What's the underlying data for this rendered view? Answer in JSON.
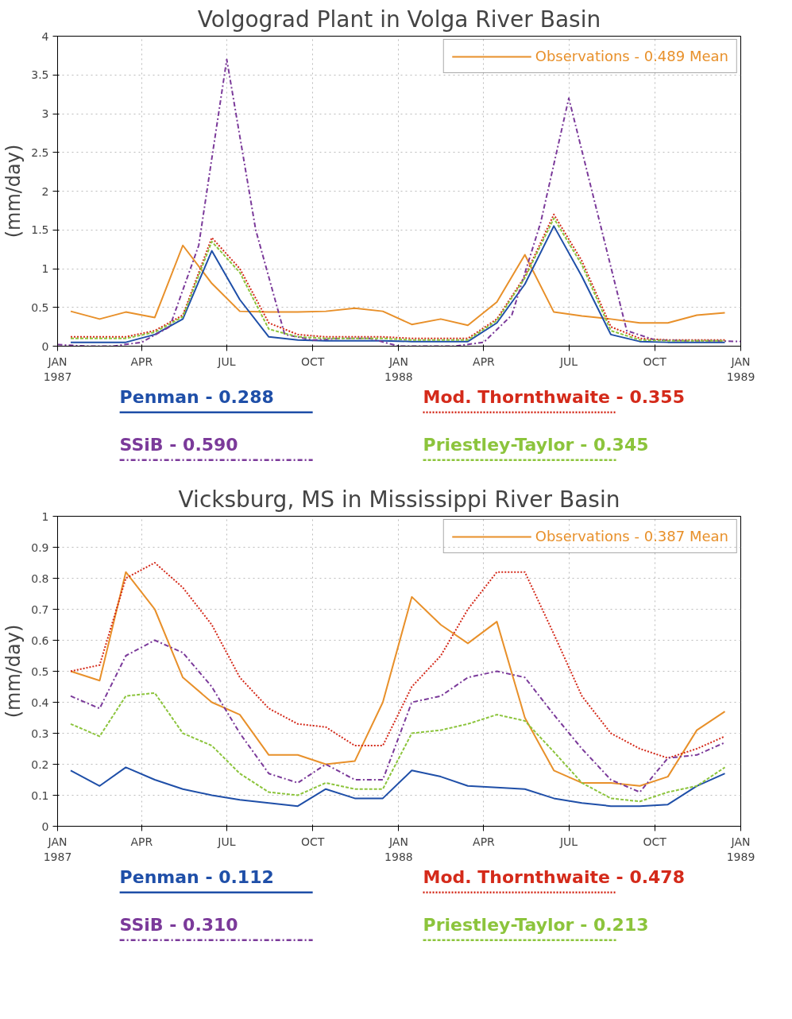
{
  "chart_data": [
    {
      "type": "line",
      "title": "Volgograd Plant in Volga River Basin",
      "ylabel": "(mm/day)",
      "x": [
        "1987-01-15",
        "1987-02-15",
        "1987-03-15",
        "1987-04-15",
        "1987-05-15",
        "1987-06-15",
        "1987-07-15",
        "1987-08-15",
        "1987-09-15",
        "1987-10-15",
        "1987-11-15",
        "1987-12-15",
        "1988-01-15",
        "1988-02-15",
        "1988-03-15",
        "1988-04-15",
        "1988-05-15",
        "1988-06-15",
        "1988-07-15",
        "1988-08-15",
        "1988-09-15",
        "1988-10-15",
        "1988-11-15",
        "1988-12-15"
      ],
      "series": [
        {
          "name": "Observations - 0.489 Mean",
          "color": "#e8902a",
          "line_style": "solid",
          "values": [
            0.45,
            0.35,
            0.44,
            0.37,
            1.3,
            0.81,
            0.45,
            0.44,
            0.44,
            0.45,
            0.49,
            0.45,
            0.28,
            0.35,
            0.27,
            0.57,
            1.18,
            0.44,
            0.39,
            0.35,
            0.3,
            0.3,
            0.4,
            0.43
          ]
        },
        {
          "name": "Penman - 0.288",
          "color": "#1f4fa8",
          "line_style": "solid",
          "values": [
            0.05,
            0.05,
            0.05,
            0.15,
            0.35,
            1.23,
            0.6,
            0.12,
            0.08,
            0.07,
            0.07,
            0.07,
            0.06,
            0.06,
            0.06,
            0.3,
            0.8,
            1.55,
            0.9,
            0.15,
            0.06,
            0.05,
            0.05,
            0.05
          ]
        },
        {
          "name": "Mod. Thornthwaite - 0.355",
          "color": "#d42a1a",
          "line_style": "dotted",
          "values": [
            0.12,
            0.12,
            0.12,
            0.2,
            0.4,
            1.4,
            1.0,
            0.3,
            0.15,
            0.12,
            0.12,
            0.12,
            0.1,
            0.1,
            0.1,
            0.35,
            0.9,
            1.7,
            1.1,
            0.25,
            0.1,
            0.08,
            0.08,
            0.08
          ]
        },
        {
          "name": "SSiB - 0.590",
          "color": "#7b3a9a",
          "line_style": "dashdot",
          "x": [
            "1987-01-01",
            "1987-02-01",
            "1987-03-01",
            "1987-04-01",
            "1987-05-01",
            "1987-06-01",
            "1987-07-01",
            "1987-08-01",
            "1987-09-01",
            "1987-10-01",
            "1987-11-01",
            "1987-12-01",
            "1988-01-01",
            "1988-02-01",
            "1988-03-01",
            "1988-04-01",
            "1988-05-01",
            "1988-06-01",
            "1988-07-01",
            "1988-08-01",
            "1988-09-01",
            "1988-10-01",
            "1988-11-01",
            "1988-12-01",
            "1989-01-01"
          ],
          "values": [
            0.02,
            0.0,
            0.0,
            0.05,
            0.25,
            1.3,
            3.7,
            1.5,
            0.15,
            0.08,
            0.1,
            0.1,
            0.0,
            0.0,
            0.0,
            0.05,
            0.4,
            1.6,
            3.2,
            1.7,
            0.2,
            0.08,
            0.07,
            0.07,
            0.06
          ]
        },
        {
          "name": "Priestley-Taylor - 0.345",
          "color": "#8cc43c",
          "line_style": "dashed",
          "values": [
            0.1,
            0.1,
            0.1,
            0.18,
            0.38,
            1.35,
            0.95,
            0.22,
            0.12,
            0.1,
            0.1,
            0.1,
            0.08,
            0.08,
            0.08,
            0.33,
            0.88,
            1.65,
            1.05,
            0.2,
            0.08,
            0.07,
            0.07,
            0.07
          ]
        }
      ],
      "xlim": [
        "1987-01-01",
        "1989-01-01"
      ],
      "xticks": [
        {
          "value": "1987-01-01",
          "label": "JAN\n1987"
        },
        {
          "value": "1987-04-01",
          "label": "APR"
        },
        {
          "value": "1987-07-01",
          "label": "JUL"
        },
        {
          "value": "1987-10-01",
          "label": "OCT"
        },
        {
          "value": "1988-01-01",
          "label": "JAN\n1988"
        },
        {
          "value": "1988-04-01",
          "label": "APR"
        },
        {
          "value": "1988-07-01",
          "label": "JUL"
        },
        {
          "value": "1988-10-01",
          "label": "OCT"
        },
        {
          "value": "1989-01-01",
          "label": "JAN\n1989"
        }
      ],
      "ylim": [
        0,
        4
      ],
      "yticks": [
        0,
        0.5,
        1,
        1.5,
        2,
        2.5,
        3,
        3.5,
        4
      ],
      "grid": true,
      "legend": "bottom"
    },
    {
      "type": "line",
      "title": "Vicksburg, MS in Mississippi River Basin",
      "ylabel": "(mm/day)",
      "x": [
        "1987-01-15",
        "1987-02-15",
        "1987-03-15",
        "1987-04-15",
        "1987-05-15",
        "1987-06-15",
        "1987-07-15",
        "1987-08-15",
        "1987-09-15",
        "1987-10-15",
        "1987-11-15",
        "1987-12-15",
        "1988-01-15",
        "1988-02-15",
        "1988-03-15",
        "1988-04-15",
        "1988-05-15",
        "1988-06-15",
        "1988-07-15",
        "1988-08-15",
        "1988-09-15",
        "1988-10-15",
        "1988-11-15",
        "1988-12-15"
      ],
      "series": [
        {
          "name": "Observations - 0.387 Mean",
          "color": "#e8902a",
          "line_style": "solid",
          "values": [
            0.5,
            0.47,
            0.82,
            0.7,
            0.48,
            0.4,
            0.36,
            0.23,
            0.23,
            0.2,
            0.21,
            0.4,
            0.74,
            0.65,
            0.59,
            0.66,
            0.35,
            0.18,
            0.14,
            0.14,
            0.13,
            0.16,
            0.31,
            0.37
          ]
        },
        {
          "name": "Penman - 0.112",
          "color": "#1f4fa8",
          "line_style": "solid",
          "values": [
            0.18,
            0.13,
            0.19,
            0.15,
            0.12,
            0.1,
            0.085,
            0.075,
            0.065,
            0.12,
            0.09,
            0.09,
            0.18,
            0.16,
            0.13,
            0.125,
            0.12,
            0.09,
            0.075,
            0.065,
            0.065,
            0.07,
            0.13,
            0.17
          ]
        },
        {
          "name": "Mod. Thornthwaite -  0.478",
          "color": "#d42a1a",
          "line_style": "dotted",
          "values": [
            0.5,
            0.52,
            0.8,
            0.85,
            0.77,
            0.65,
            0.48,
            0.38,
            0.33,
            0.32,
            0.26,
            0.26,
            0.45,
            0.55,
            0.7,
            0.82,
            0.82,
            0.62,
            0.42,
            0.3,
            0.25,
            0.22,
            0.25,
            0.29
          ]
        },
        {
          "name": "SSiB - 0.310",
          "color": "#7b3a9a",
          "line_style": "dashdot",
          "values": [
            0.42,
            0.38,
            0.55,
            0.6,
            0.56,
            0.45,
            0.3,
            0.17,
            0.14,
            0.2,
            0.15,
            0.15,
            0.4,
            0.42,
            0.48,
            0.5,
            0.48,
            0.36,
            0.25,
            0.15,
            0.11,
            0.22,
            0.23,
            0.27
          ]
        },
        {
          "name": "Priestley-Taylor - 0.213",
          "color": "#8cc43c",
          "line_style": "dashed",
          "values": [
            0.33,
            0.29,
            0.42,
            0.43,
            0.3,
            0.26,
            0.17,
            0.11,
            0.1,
            0.14,
            0.12,
            0.12,
            0.3,
            0.31,
            0.33,
            0.36,
            0.34,
            0.24,
            0.14,
            0.09,
            0.08,
            0.11,
            0.13,
            0.19
          ]
        }
      ],
      "xlim": [
        "1987-01-01",
        "1989-01-01"
      ],
      "xticks": [
        {
          "value": "1987-01-01",
          "label": "JAN\n1987"
        },
        {
          "value": "1987-04-01",
          "label": "APR"
        },
        {
          "value": "1987-07-01",
          "label": "JUL"
        },
        {
          "value": "1987-10-01",
          "label": "OCT"
        },
        {
          "value": "1988-01-01",
          "label": "JAN\n1988"
        },
        {
          "value": "1988-04-01",
          "label": "APR"
        },
        {
          "value": "1988-07-01",
          "label": "JUL"
        },
        {
          "value": "1988-10-01",
          "label": "OCT"
        },
        {
          "value": "1989-01-01",
          "label": "JAN\n1989"
        }
      ],
      "ylim": [
        0,
        1
      ],
      "yticks": [
        0,
        0.1,
        0.2,
        0.3,
        0.4,
        0.5,
        0.6,
        0.7,
        0.8,
        0.9,
        1
      ],
      "grid": true,
      "legend": "bottom"
    }
  ]
}
